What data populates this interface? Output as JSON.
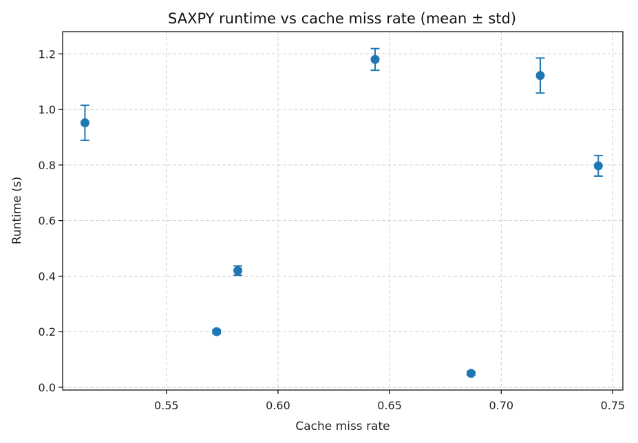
{
  "chart_data": {
    "type": "scatter",
    "title": "SAXPY runtime vs cache miss rate (mean ± std)",
    "xlabel": "Cache miss rate",
    "ylabel": "Runtime (s)",
    "xlim": [
      0.5035,
      0.7545
    ],
    "ylim": [
      -0.01,
      1.28
    ],
    "xticks": [
      0.55,
      0.6,
      0.65,
      0.7,
      0.75
    ],
    "xtick_labels": [
      "0.55",
      "0.60",
      "0.65",
      "0.70",
      "0.75"
    ],
    "yticks": [
      0.0,
      0.2,
      0.4,
      0.6,
      0.8,
      1.0,
      1.2
    ],
    "ytick_labels": [
      "0.0",
      "0.2",
      "0.4",
      "0.6",
      "0.8",
      "1.0",
      "1.2"
    ],
    "grid": true,
    "color": "#1f77b4",
    "points": [
      {
        "x": 0.5135,
        "y": 0.952,
        "err": 0.063
      },
      {
        "x": 0.5725,
        "y": 0.2,
        "err": 0.007
      },
      {
        "x": 0.582,
        "y": 0.42,
        "err": 0.017
      },
      {
        "x": 0.6435,
        "y": 1.18,
        "err": 0.039
      },
      {
        "x": 0.6865,
        "y": 0.05,
        "err": 0.006
      },
      {
        "x": 0.7175,
        "y": 1.122,
        "err": 0.063
      },
      {
        "x": 0.7435,
        "y": 0.797,
        "err": 0.037
      }
    ]
  }
}
